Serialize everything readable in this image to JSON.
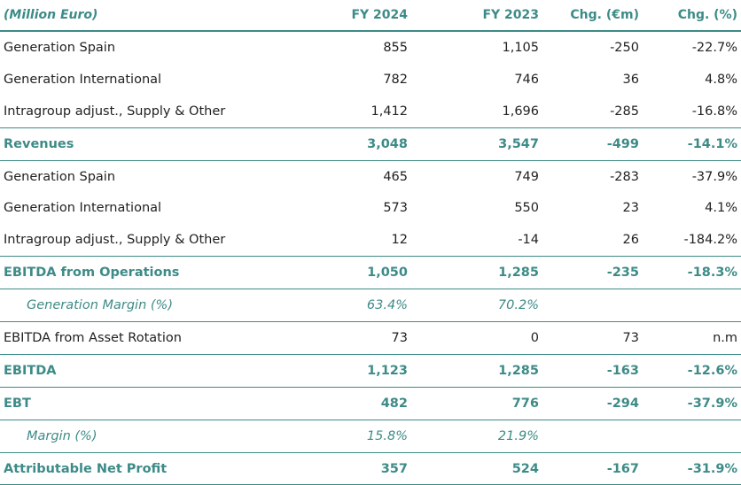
{
  "header": {
    "label": "(Million Euro)",
    "fy2024": "FY 2024",
    "fy2023": "FY 2023",
    "chg_abs": "Chg. (€m)",
    "chg_pct": "Chg. (%)"
  },
  "rows": [
    {
      "label": "Generation Spain",
      "fy2024": "855",
      "fy2023": "1,105",
      "chg_abs": "-250",
      "chg_pct": "-22.7%"
    },
    {
      "label": "Generation International",
      "fy2024": "782",
      "fy2023": "746",
      "chg_abs": "36",
      "chg_pct": "4.8%"
    },
    {
      "label": "Intragroup adjust., Supply & Other",
      "fy2024": "1,412",
      "fy2023": "1,696",
      "chg_abs": "-285",
      "chg_pct": "-16.8%"
    },
    {
      "label": "Revenues",
      "fy2024": "3,048",
      "fy2023": "3,547",
      "chg_abs": "-499",
      "chg_pct": "-14.1%"
    },
    {
      "label": "Generation Spain",
      "fy2024": "465",
      "fy2023": "749",
      "chg_abs": "-283",
      "chg_pct": "-37.9%"
    },
    {
      "label": "Generation International",
      "fy2024": "573",
      "fy2023": "550",
      "chg_abs": "23",
      "chg_pct": "4.1%"
    },
    {
      "label": "Intragroup adjust., Supply & Other",
      "fy2024": "12",
      "fy2023": "-14",
      "chg_abs": "26",
      "chg_pct": "-184.2%"
    },
    {
      "label": "EBITDA from Operations",
      "fy2024": "1,050",
      "fy2023": "1,285",
      "chg_abs": "-235",
      "chg_pct": "-18.3%"
    },
    {
      "label": "Generation Margin (%)",
      "fy2024": "63.4%",
      "fy2023": "70.2%",
      "chg_abs": "",
      "chg_pct": ""
    },
    {
      "label": "EBITDA from Asset Rotation",
      "fy2024": "73",
      "fy2023": "0",
      "chg_abs": "73",
      "chg_pct": "n.m"
    },
    {
      "label": "EBITDA",
      "fy2024": "1,123",
      "fy2023": "1,285",
      "chg_abs": "-163",
      "chg_pct": "-12.6%"
    },
    {
      "label": "EBT",
      "fy2024": "482",
      "fy2023": "776",
      "chg_abs": "-294",
      "chg_pct": "-37.9%"
    },
    {
      "label": "Margin (%)",
      "fy2024": "15.8%",
      "fy2023": "21.9%",
      "chg_abs": "",
      "chg_pct": ""
    },
    {
      "label": "Attributable Net Profit",
      "fy2024": "357",
      "fy2023": "524",
      "chg_abs": "-167",
      "chg_pct": "-31.9%"
    }
  ],
  "colors": {
    "accent": "#3d8b87",
    "text": "#222222"
  }
}
